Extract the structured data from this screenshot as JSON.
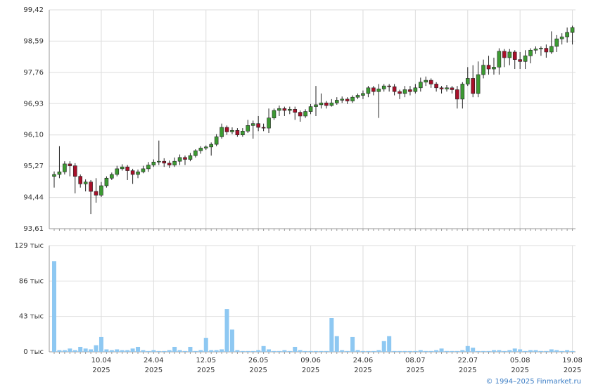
{
  "chart_data": [
    {
      "type": "candlestick",
      "ylim": [
        93.61,
        99.42
      ],
      "yticks": [
        {
          "value": 93.61,
          "label": "93,61"
        },
        {
          "value": 94.44,
          "label": "94,44"
        },
        {
          "value": 95.27,
          "label": "95,27"
        },
        {
          "value": 96.1,
          "label": "96,10"
        },
        {
          "value": 96.93,
          "label": "96,93"
        },
        {
          "value": 97.76,
          "label": "97,76"
        },
        {
          "value": 98.59,
          "label": "98,59"
        },
        {
          "value": 99.42,
          "label": "99,42"
        }
      ],
      "up_color": "#3c9a32",
      "down_color": "#a8102a",
      "grid": true,
      "open": [
        95.0,
        95.05,
        95.12,
        95.33,
        95.28,
        95.0,
        94.8,
        94.85,
        94.6,
        94.5,
        94.75,
        94.95,
        95.05,
        95.2,
        95.25,
        95.15,
        95.05,
        95.12,
        95.2,
        95.3,
        95.38,
        95.4,
        95.35,
        95.3,
        95.4,
        95.5,
        95.45,
        95.55,
        95.68,
        95.75,
        95.78,
        95.85,
        96.05,
        96.3,
        96.18,
        96.22,
        96.1,
        96.2,
        96.35,
        96.4,
        96.3,
        96.28,
        96.55,
        96.75,
        96.8,
        96.75,
        96.78,
        96.7,
        96.6,
        96.72,
        96.85,
        96.9,
        96.95,
        96.88,
        96.95,
        97.02,
        97.05,
        97.0,
        97.1,
        97.15,
        97.2,
        97.35,
        97.25,
        97.32,
        97.4,
        97.38,
        97.25,
        97.2,
        97.3,
        97.25,
        97.35,
        97.5,
        97.55,
        97.45,
        97.35,
        97.32,
        97.35,
        97.3,
        97.05,
        97.45,
        97.6,
        97.2,
        97.7,
        97.95,
        97.85,
        97.9,
        98.32,
        98.15,
        98.3,
        98.1,
        98.05,
        98.2,
        98.35,
        98.38,
        98.4,
        98.3,
        98.45,
        98.65,
        98.7,
        98.82
      ],
      "high": [
        95.13,
        95.8,
        95.4,
        95.4,
        95.35,
        95.05,
        94.92,
        94.9,
        94.95,
        94.85,
        95.0,
        95.1,
        95.28,
        95.32,
        95.3,
        95.2,
        95.18,
        95.28,
        95.38,
        95.45,
        95.95,
        95.48,
        95.42,
        95.5,
        95.58,
        95.55,
        95.62,
        95.72,
        95.8,
        95.82,
        95.9,
        96.12,
        96.4,
        96.35,
        96.3,
        96.28,
        96.28,
        96.5,
        96.48,
        96.6,
        96.4,
        96.8,
        96.8,
        96.88,
        96.85,
        96.85,
        96.85,
        96.75,
        96.78,
        96.92,
        97.4,
        97.2,
        97.0,
        97.05,
        97.1,
        97.12,
        97.1,
        97.15,
        97.2,
        97.28,
        97.4,
        97.4,
        97.45,
        97.45,
        97.45,
        97.45,
        97.3,
        97.4,
        97.4,
        97.45,
        97.62,
        97.65,
        97.6,
        97.5,
        97.4,
        97.42,
        97.4,
        97.4,
        97.5,
        97.9,
        97.95,
        98.05,
        98.1,
        98.2,
        98.15,
        98.4,
        98.38,
        98.38,
        98.35,
        98.3,
        98.35,
        98.4,
        98.45,
        98.45,
        98.5,
        98.85,
        98.75,
        98.8,
        98.95,
        99.0
      ],
      "low": [
        94.7,
        94.95,
        95.05,
        95.0,
        94.55,
        94.7,
        94.6,
        94.0,
        94.3,
        94.45,
        94.7,
        94.9,
        95.0,
        95.15,
        94.9,
        94.8,
        94.95,
        95.08,
        95.12,
        95.25,
        95.3,
        95.25,
        95.22,
        95.25,
        95.3,
        95.3,
        95.4,
        95.5,
        95.6,
        95.7,
        95.55,
        95.8,
        96.0,
        96.1,
        96.12,
        96.05,
        96.05,
        96.15,
        96.0,
        96.2,
        96.2,
        96.15,
        96.5,
        96.6,
        96.6,
        96.65,
        96.5,
        96.45,
        96.55,
        96.65,
        96.6,
        96.8,
        96.8,
        96.85,
        96.9,
        96.95,
        96.92,
        96.95,
        97.05,
        97.05,
        97.1,
        97.15,
        96.55,
        97.25,
        97.25,
        97.15,
        97.05,
        97.1,
        97.15,
        97.2,
        97.25,
        97.4,
        97.35,
        97.25,
        97.2,
        97.25,
        97.2,
        96.8,
        96.8,
        97.4,
        97.1,
        97.1,
        97.6,
        97.7,
        97.7,
        97.7,
        97.9,
        97.95,
        97.85,
        97.85,
        97.85,
        98.0,
        98.25,
        98.2,
        98.15,
        98.25,
        98.3,
        98.5,
        98.55,
        98.5
      ],
      "close": [
        95.05,
        95.12,
        95.33,
        95.28,
        95.0,
        94.8,
        94.85,
        94.6,
        94.5,
        94.75,
        94.95,
        95.05,
        95.2,
        95.25,
        95.15,
        95.05,
        95.12,
        95.2,
        95.3,
        95.38,
        95.4,
        95.35,
        95.3,
        95.4,
        95.5,
        95.45,
        95.55,
        95.68,
        95.75,
        95.78,
        95.85,
        96.05,
        96.3,
        96.18,
        96.22,
        96.1,
        96.2,
        96.35,
        96.4,
        96.3,
        96.28,
        96.55,
        96.75,
        96.8,
        96.75,
        96.78,
        96.7,
        96.6,
        96.72,
        96.85,
        96.9,
        96.95,
        96.88,
        96.95,
        97.02,
        97.05,
        97.0,
        97.1,
        97.15,
        97.2,
        97.35,
        97.25,
        97.32,
        97.4,
        97.38,
        97.25,
        97.2,
        97.3,
        97.25,
        97.35,
        97.5,
        97.55,
        97.45,
        97.35,
        97.32,
        97.35,
        97.3,
        97.05,
        97.45,
        97.6,
        97.2,
        97.7,
        97.95,
        97.85,
        97.9,
        98.32,
        98.15,
        98.3,
        98.1,
        98.05,
        98.2,
        98.35,
        98.38,
        98.4,
        98.3,
        98.45,
        98.65,
        98.7,
        98.82,
        98.95
      ]
    },
    {
      "type": "bar",
      "categories": [
        null,
        null,
        null,
        null,
        null,
        null,
        null,
        null,
        null,
        "10.04 2025",
        null,
        null,
        null,
        null,
        null,
        null,
        null,
        null,
        null,
        "24.04 2025",
        null,
        null,
        null,
        null,
        null,
        null,
        null,
        null,
        null,
        "12.05 2025",
        null,
        null,
        null,
        null,
        null,
        null,
        null,
        null,
        null,
        "26.05 2025",
        null,
        null,
        null,
        null,
        null,
        null,
        null,
        null,
        null,
        "09.06 2025",
        null,
        null,
        null,
        null,
        null,
        null,
        null,
        null,
        null,
        "24.06 2025",
        null,
        null,
        null,
        null,
        null,
        null,
        null,
        null,
        null,
        "08.07 2025",
        null,
        null,
        null,
        null,
        null,
        null,
        null,
        null,
        null,
        "22.07 2025",
        null,
        null,
        null,
        null,
        null,
        null,
        null,
        null,
        null,
        "05.08 2025",
        null,
        null,
        null,
        null,
        null,
        null,
        null,
        null,
        null,
        "19.08 2025"
      ],
      "values": [
        110,
        2,
        2,
        4,
        2,
        6,
        4,
        3,
        8,
        18,
        3,
        2,
        3,
        2,
        2,
        4,
        6,
        2,
        1,
        2,
        1,
        1,
        2,
        6,
        2,
        1,
        6,
        1,
        2,
        17,
        2,
        2,
        3,
        52,
        27,
        2,
        1,
        1,
        1,
        2,
        7,
        3,
        1,
        1,
        2,
        1,
        6,
        2,
        1,
        1,
        1,
        1,
        1,
        41,
        19,
        2,
        1,
        18,
        2,
        1,
        1,
        1,
        2,
        13,
        19,
        1,
        1,
        1,
        1,
        1,
        2,
        1,
        1,
        2,
        4,
        1,
        1,
        1,
        2,
        7,
        5,
        1,
        1,
        1,
        2,
        2,
        1,
        2,
        4,
        3,
        1,
        2,
        2,
        1,
        1,
        3,
        2,
        1,
        2,
        1
      ],
      "ylim": [
        0,
        129
      ],
      "yticks": [
        {
          "value": 0,
          "label": "0 тыс"
        },
        {
          "value": 43,
          "label": "43 тыс"
        },
        {
          "value": 86,
          "label": "86 тыс"
        },
        {
          "value": 129,
          "label": "129 тыс"
        }
      ],
      "color": "#8ec8f2",
      "grid": true
    }
  ],
  "source": "© 1994–2025 Finmarket.ru"
}
